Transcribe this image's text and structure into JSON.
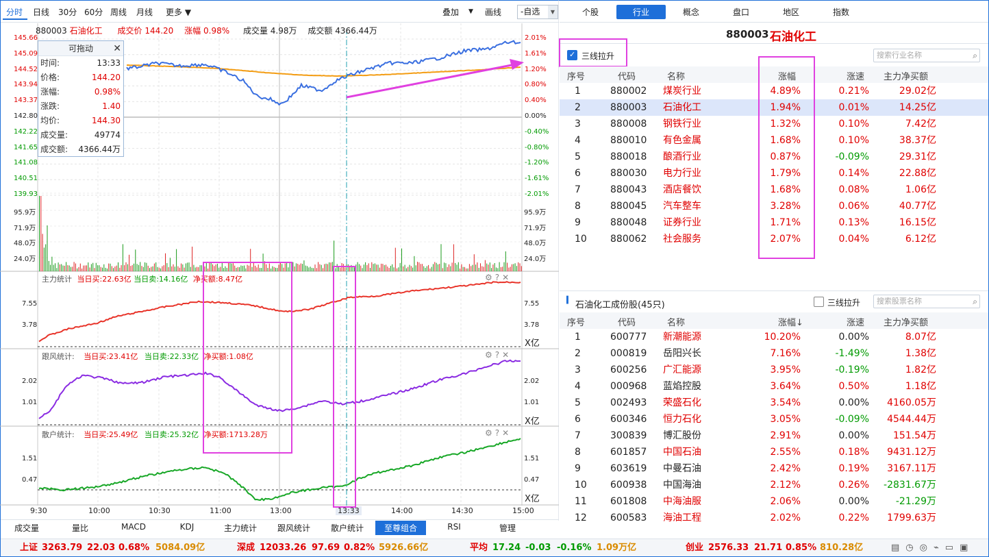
{
  "toolbar": {
    "tabs": [
      "分时",
      "日线",
      "30分",
      "60分",
      "周线",
      "月线",
      "更多 ▼"
    ],
    "overlay": "叠加",
    "draw": "画线",
    "watchlist": "-自选"
  },
  "right_tabs": [
    "个股",
    "行业",
    "概念",
    "盘口",
    "地区",
    "指数"
  ],
  "chart_header": {
    "code": "880003",
    "name": "石油化工",
    "price_label": "成交价",
    "price": "144.20",
    "change_label": "涨幅",
    "change": "0.98%",
    "volume_label": "成交量",
    "volume": "4.98万",
    "amount_label": "成交额",
    "amount": "4366.44万"
  },
  "price_axis_left": [
    "145.66",
    "145.09",
    "144.52",
    "143.94",
    "143.37",
    "142.80",
    "142.22",
    "141.65",
    "141.08",
    "140.51",
    "139.93"
  ],
  "price_axis_right": [
    "2.01%",
    "1.61%",
    "1.20%",
    "0.80%",
    "0.40%",
    "0.00%",
    "-0.40%",
    "-0.80%",
    "-1.20%",
    "-1.61%",
    "-2.01%"
  ],
  "volume_axis": [
    "95.9万",
    "71.9万",
    "48.0万",
    "24.0万"
  ],
  "infobox": {
    "title": "可拖动",
    "rows": [
      {
        "k": "时间:",
        "v": "13:33"
      },
      {
        "k": "价格:",
        "v": "144.20"
      },
      {
        "k": "涨幅:",
        "v": "0.98%"
      },
      {
        "k": "涨跌:",
        "v": "1.40"
      },
      {
        "k": "均价:",
        "v": "144.30"
      },
      {
        "k": "成交量:",
        "v": "49774"
      },
      {
        "k": "成交额:",
        "v": "4366.44万"
      }
    ]
  },
  "panel1": {
    "label": "主力统计",
    "buy": "当日买:22.63亿",
    "sell": "当日卖:14.16亿",
    "net": "净买额:8.47亿",
    "ticks": [
      "7.55",
      "3.78"
    ],
    "unit": "X亿"
  },
  "panel2": {
    "label": "跟风统计:",
    "buy": "当日买:23.41亿",
    "sell": "当日卖:22.33亿",
    "net": "净买额:1.08亿",
    "ticks": [
      "2.02",
      "1.01"
    ],
    "unit": "X亿"
  },
  "panel3": {
    "label": "散户统计:",
    "buy": "当日买:25.49亿",
    "sell": "当日卖:25.32亿",
    "net": "净买额:1713.28万",
    "ticks": [
      "1.51",
      "0.47"
    ],
    "unit": "X亿"
  },
  "time_axis": [
    "9:30",
    "10:00",
    "10:30",
    "11:00",
    "13:00",
    "13:33",
    "14:00",
    "14:30",
    "15:00"
  ],
  "bottom_tabs": [
    "成交量",
    "量比",
    "MACD",
    "KDJ",
    "主力统计",
    "跟风统计",
    "散户统计",
    "至尊组合",
    "RSI",
    "管理"
  ],
  "industry": {
    "code": "880003",
    "name": "石油化工",
    "checkbox": "三线拉升",
    "search": "搜索行业名称",
    "headers": [
      "序号",
      "代码",
      "名称",
      "涨幅",
      "涨速",
      "主力净买额"
    ],
    "rows": [
      [
        "1",
        "880002",
        "煤炭行业",
        "4.89%",
        "0.21%",
        "29.02亿"
      ],
      [
        "2",
        "880003",
        "石油化工",
        "1.94%",
        "0.01%",
        "14.25亿"
      ],
      [
        "3",
        "880008",
        "钢铁行业",
        "1.32%",
        "0.10%",
        "7.42亿"
      ],
      [
        "4",
        "880010",
        "有色金属",
        "1.68%",
        "0.10%",
        "38.37亿"
      ],
      [
        "5",
        "880018",
        "酿酒行业",
        "0.87%",
        "-0.09%",
        "29.31亿"
      ],
      [
        "6",
        "880030",
        "电力行业",
        "1.79%",
        "0.14%",
        "22.88亿"
      ],
      [
        "7",
        "880043",
        "酒店餐饮",
        "1.68%",
        "0.08%",
        "1.06亿"
      ],
      [
        "8",
        "880045",
        "汽车整车",
        "3.28%",
        "0.06%",
        "40.77亿"
      ],
      [
        "9",
        "880048",
        "证券行业",
        "1.71%",
        "0.13%",
        "16.15亿"
      ],
      [
        "10",
        "880062",
        "社会服务",
        "2.07%",
        "0.04%",
        "6.12亿"
      ]
    ]
  },
  "components": {
    "title": "石油化工成份股(45只)",
    "checkbox": "三线拉升",
    "search": "搜索股票名称",
    "headers": [
      "序号",
      "代码",
      "名称",
      "涨幅↓",
      "涨速",
      "主力净买额"
    ],
    "rows": [
      [
        "1",
        "600777",
        "新潮能源",
        "10.20%",
        "0.00%",
        "8.07亿"
      ],
      [
        "2",
        "000819",
        "岳阳兴长",
        "7.16%",
        "-1.49%",
        "1.38亿"
      ],
      [
        "3",
        "600256",
        "广汇能源",
        "3.95%",
        "-0.19%",
        "1.82亿"
      ],
      [
        "4",
        "000968",
        "蓝焰控股",
        "3.64%",
        "0.50%",
        "1.18亿"
      ],
      [
        "5",
        "002493",
        "荣盛石化",
        "3.54%",
        "0.00%",
        "4160.05万"
      ],
      [
        "6",
        "600346",
        "恒力石化",
        "3.05%",
        "-0.09%",
        "4544.44万"
      ],
      [
        "7",
        "300839",
        "博汇股份",
        "2.91%",
        "0.00%",
        "151.54万"
      ],
      [
        "8",
        "601857",
        "中国石油",
        "2.55%",
        "0.18%",
        "9431.12万"
      ],
      [
        "9",
        "603619",
        "中曼石油",
        "2.42%",
        "0.19%",
        "3167.11万"
      ],
      [
        "10",
        "600938",
        "中国海油",
        "2.12%",
        "0.26%",
        "-2831.67万"
      ],
      [
        "11",
        "601808",
        "中海油服",
        "2.06%",
        "0.00%",
        "-21.29万"
      ],
      [
        "12",
        "600583",
        "海油工程",
        "2.02%",
        "0.22%",
        "1799.63万"
      ]
    ]
  },
  "status": {
    "sh_label": "上证",
    "sh": "3263.79",
    "sh_chg": "22.03",
    "sh_pct": "0.68%",
    "sh_amt": "5084.09亿",
    "sz_label": "深成",
    "sz": "12033.26",
    "sz_chg": "97.69",
    "sz_pct": "0.82%",
    "sz_amt": "5926.66亿",
    "avg_label": "平均",
    "avg": "17.24",
    "avg_chg": "-0.03",
    "avg_pct": "-0.16%",
    "avg_amt": "1.09万亿",
    "cy_label": "创业",
    "cy": "2576.33",
    "cy_chg": "21.71",
    "cy_pct": "0.85%",
    "cy_amt": "810.28亿"
  }
}
